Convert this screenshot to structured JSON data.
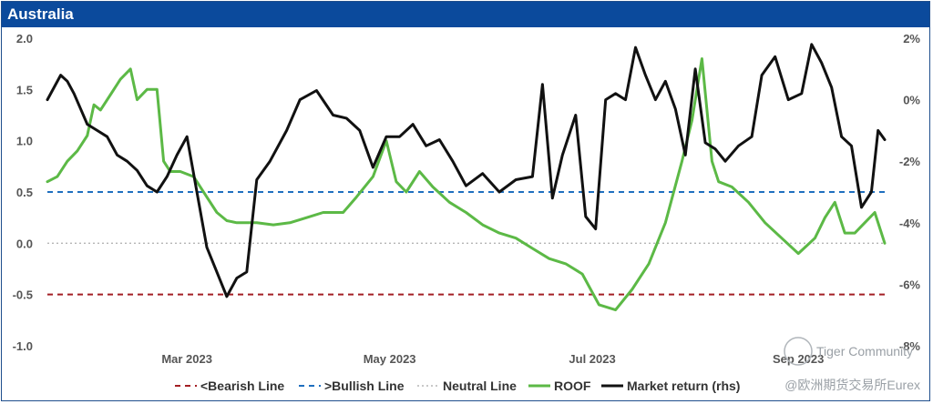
{
  "chart_data": {
    "type": "line",
    "title": "Australia",
    "x_labels": [
      "Mar 2023",
      "May 2023",
      "Jul 2023",
      "Sep 2023"
    ],
    "x_start": "2023-02-01",
    "x_end": "2023-10-11",
    "y_left": {
      "range": [
        -1.0,
        2.0
      ],
      "ticks": [
        "2.0",
        "1.5",
        "1.0",
        "0.5",
        "0.0",
        "-0.5",
        "-1.0"
      ]
    },
    "y_right": {
      "range": [
        -8,
        2
      ],
      "ticks": [
        "2%",
        "0%",
        "-2%",
        "-4%",
        "-6%",
        "-8%"
      ]
    },
    "reference_lines": [
      {
        "name": "<Bearish Line",
        "value": -0.5,
        "color": "#a31f24",
        "style": "dashed"
      },
      {
        "name": ">Bullish Line",
        "value": 0.5,
        "color": "#1f6fbf",
        "style": "dashed"
      },
      {
        "name": "Neutral Line",
        "value": 0.0,
        "color": "#b5b5b5",
        "style": "dotted"
      }
    ],
    "series": [
      {
        "name": "ROOF",
        "axis": "left",
        "color": "#5cb946",
        "x": [
          "2023-02-01",
          "2023-02-04",
          "2023-02-07",
          "2023-02-10",
          "2023-02-13",
          "2023-02-15",
          "2023-02-17",
          "2023-02-20",
          "2023-02-23",
          "2023-02-26",
          "2023-02-28",
          "2023-03-03",
          "2023-03-06",
          "2023-03-08",
          "2023-03-10",
          "2023-03-13",
          "2023-03-17",
          "2023-03-21",
          "2023-03-24",
          "2023-03-27",
          "2023-03-30",
          "2023-04-02",
          "2023-04-05",
          "2023-04-10",
          "2023-04-15",
          "2023-04-20",
          "2023-04-25",
          "2023-05-01",
          "2023-05-05",
          "2023-05-10",
          "2023-05-14",
          "2023-05-17",
          "2023-05-20",
          "2023-05-24",
          "2023-05-28",
          "2023-06-02",
          "2023-06-07",
          "2023-06-12",
          "2023-06-17",
          "2023-06-22",
          "2023-06-27",
          "2023-07-02",
          "2023-07-07",
          "2023-07-12",
          "2023-07-17",
          "2023-07-22",
          "2023-07-27",
          "2023-08-01",
          "2023-08-06",
          "2023-08-11",
          "2023-08-14",
          "2023-08-17",
          "2023-08-20",
          "2023-08-22",
          "2023-08-26",
          "2023-08-31",
          "2023-09-05",
          "2023-09-10",
          "2023-09-15",
          "2023-09-20",
          "2023-09-23",
          "2023-09-26",
          "2023-09-29",
          "2023-10-02",
          "2023-10-05",
          "2023-10-08",
          "2023-10-11"
        ],
        "values": [
          0.6,
          0.65,
          0.8,
          0.9,
          1.05,
          1.35,
          1.3,
          1.45,
          1.6,
          1.7,
          1.4,
          1.5,
          1.5,
          0.8,
          0.7,
          0.7,
          0.65,
          0.45,
          0.3,
          0.22,
          0.2,
          0.2,
          0.2,
          0.18,
          0.2,
          0.25,
          0.3,
          0.3,
          0.45,
          0.65,
          1.0,
          0.6,
          0.5,
          0.7,
          0.55,
          0.4,
          0.3,
          0.18,
          0.1,
          0.05,
          -0.05,
          -0.15,
          -0.2,
          -0.3,
          -0.6,
          -0.65,
          -0.45,
          -0.2,
          0.2,
          0.8,
          1.2,
          1.8,
          0.8,
          0.6,
          0.55,
          0.4,
          0.2,
          0.05,
          -0.1,
          0.05,
          0.25,
          0.4,
          0.1,
          0.1,
          0.2,
          0.3,
          0.0
        ]
      },
      {
        "name": "Market return (rhs)",
        "axis": "right",
        "color": "#111111",
        "x": [
          "2023-02-01",
          "2023-02-03",
          "2023-02-05",
          "2023-02-07",
          "2023-02-09",
          "2023-02-11",
          "2023-02-13",
          "2023-02-16",
          "2023-02-19",
          "2023-02-22",
          "2023-02-25",
          "2023-02-28",
          "2023-03-03",
          "2023-03-06",
          "2023-03-09",
          "2023-03-12",
          "2023-03-15",
          "2023-03-18",
          "2023-03-21",
          "2023-03-24",
          "2023-03-27",
          "2023-03-30",
          "2023-04-02",
          "2023-04-05",
          "2023-04-09",
          "2023-04-14",
          "2023-04-18",
          "2023-04-23",
          "2023-04-28",
          "2023-05-02",
          "2023-05-06",
          "2023-05-10",
          "2023-05-14",
          "2023-05-18",
          "2023-05-22",
          "2023-05-26",
          "2023-05-30",
          "2023-06-03",
          "2023-06-07",
          "2023-06-12",
          "2023-06-17",
          "2023-06-22",
          "2023-06-27",
          "2023-06-30",
          "2023-07-03",
          "2023-07-06",
          "2023-07-10",
          "2023-07-13",
          "2023-07-16",
          "2023-07-19",
          "2023-07-22",
          "2023-07-25",
          "2023-07-28",
          "2023-07-31",
          "2023-08-03",
          "2023-08-06",
          "2023-08-09",
          "2023-08-12",
          "2023-08-15",
          "2023-08-18",
          "2023-08-21",
          "2023-08-24",
          "2023-08-28",
          "2023-09-01",
          "2023-09-04",
          "2023-09-08",
          "2023-09-12",
          "2023-09-16",
          "2023-09-19",
          "2023-09-22",
          "2023-09-25",
          "2023-09-28",
          "2023-10-01",
          "2023-10-04",
          "2023-10-07",
          "2023-10-09",
          "2023-10-11"
        ],
        "values": [
          0.0,
          0.4,
          0.8,
          0.6,
          0.2,
          -0.3,
          -0.8,
          -1.0,
          -1.2,
          -1.8,
          -2.0,
          -2.3,
          -2.8,
          -3.0,
          -2.5,
          -1.8,
          -1.2,
          -3.0,
          -4.8,
          -5.6,
          -6.4,
          -5.8,
          -5.6,
          -2.6,
          -2.0,
          -1.0,
          0.0,
          0.3,
          -0.5,
          -0.6,
          -1.0,
          -2.2,
          -1.2,
          -1.2,
          -0.8,
          -1.5,
          -1.3,
          -2.0,
          -2.8,
          -2.4,
          -3.0,
          -2.6,
          -2.5,
          0.5,
          -3.2,
          -1.8,
          -0.5,
          -3.8,
          -4.2,
          0.0,
          0.2,
          0.0,
          1.7,
          0.8,
          0.0,
          0.6,
          -0.3,
          -1.8,
          1.0,
          -1.4,
          -1.6,
          -2.0,
          -1.5,
          -1.2,
          0.8,
          1.4,
          0.0,
          0.2,
          1.8,
          1.2,
          0.4,
          -1.2,
          -1.5,
          -3.5,
          -3.0,
          -1.0,
          -1.3
        ]
      }
    ],
    "legend": {
      "position": "bottom-center",
      "entries": [
        "<Bearish Line",
        ">Bullish Line",
        "Neutral Line",
        "ROOF",
        "Market return (rhs)"
      ]
    },
    "grid": false
  },
  "watermark": {
    "community": "Tiger Community",
    "source": "@欧洲期货交易所Eurex"
  }
}
